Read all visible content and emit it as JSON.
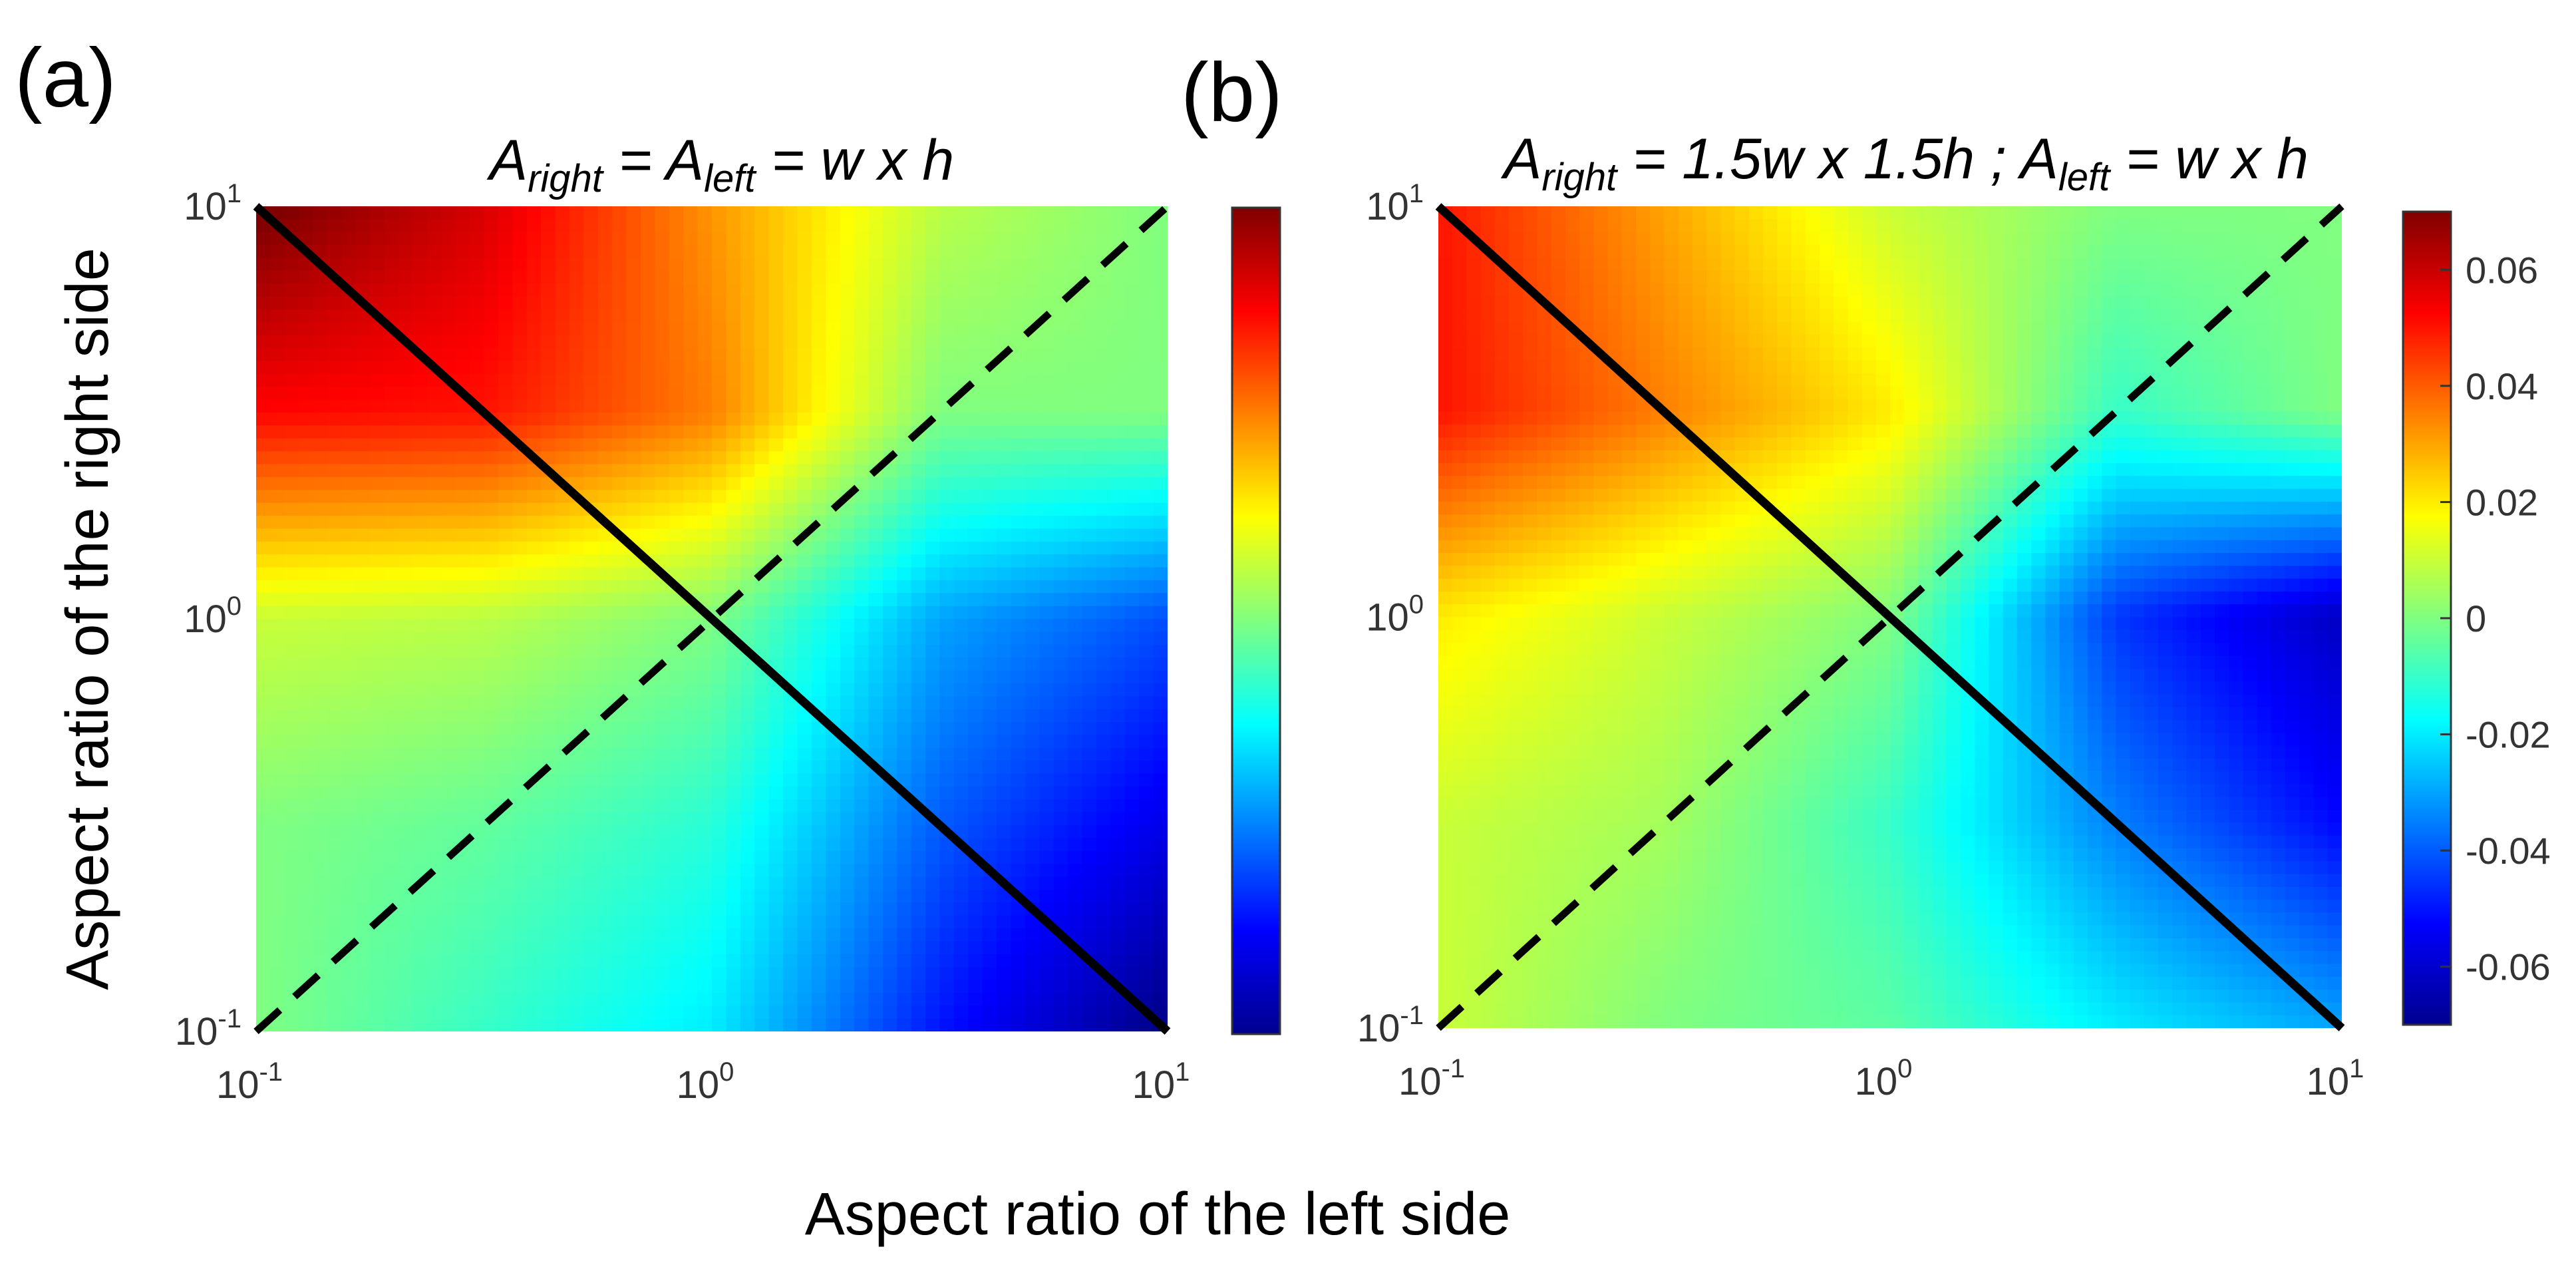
{
  "figure": {
    "xlabel": "Aspect ratio of the left side",
    "ylabel": "Aspect ratio of the right side"
  },
  "chart_data": [
    {
      "type": "heatmap",
      "panel_label": "(a)",
      "title": {
        "A": "A",
        "sub1": "right",
        "mid1": " = ",
        "sub2": "left",
        "rest": " = w x h"
      },
      "x_scale": "log",
      "y_scale": "log",
      "xlim": [
        0.1,
        10
      ],
      "ylim": [
        0.1,
        10
      ],
      "x_ticks": [
        {
          "base": "10",
          "exp": "-1"
        },
        {
          "base": "10",
          "exp": "0"
        },
        {
          "base": "10",
          "exp": "1"
        }
      ],
      "y_ticks": [
        {
          "base": "10",
          "exp": "-1"
        },
        {
          "base": "10",
          "exp": "0"
        },
        {
          "base": "10",
          "exp": "1"
        }
      ],
      "grid_log10": [
        -1,
        -0.5,
        0,
        0.5,
        1
      ],
      "z": [
        [
          0.0,
          -0.01,
          -0.02,
          -0.05,
          -0.072
        ],
        [
          0.0,
          -0.004,
          -0.012,
          -0.04,
          -0.056
        ],
        [
          0.01,
          0.008,
          0.0,
          -0.03,
          -0.042
        ],
        [
          0.052,
          0.05,
          0.035,
          0.0,
          0.0
        ],
        [
          0.072,
          0.058,
          0.032,
          0.008,
          0.0
        ]
      ],
      "lines": [
        {
          "name": "anti-diagonal",
          "style": "solid",
          "x": [
            0.1,
            10
          ],
          "y": [
            10,
            0.1
          ]
        },
        {
          "name": "diagonal",
          "style": "dashed",
          "x": [
            0.1,
            10
          ],
          "y": [
            0.1,
            10
          ]
        }
      ],
      "colorbar": {
        "range": [
          -0.07,
          0.07
        ],
        "show_ticks": false,
        "ticks": []
      }
    },
    {
      "type": "heatmap",
      "panel_label": "(b)",
      "title": {
        "A": "A",
        "sub1": "right",
        "mid1": " = 1.5w x 1.5h ; ",
        "sub2": "left",
        "rest": " = w x h"
      },
      "x_scale": "log",
      "y_scale": "log",
      "xlim": [
        0.1,
        10
      ],
      "ylim": [
        0.1,
        10
      ],
      "x_ticks": [
        {
          "base": "10",
          "exp": "-1"
        },
        {
          "base": "10",
          "exp": "0"
        },
        {
          "base": "10",
          "exp": "1"
        }
      ],
      "y_ticks": [
        {
          "base": "10",
          "exp": "-1"
        },
        {
          "base": "10",
          "exp": "0"
        },
        {
          "base": "10",
          "exp": "1"
        }
      ],
      "grid_log10": [
        -1,
        -0.5,
        0,
        0.5,
        1
      ],
      "z": [
        [
          0.01,
          0.0,
          -0.005,
          -0.02,
          -0.03
        ],
        [
          0.01,
          0.005,
          -0.01,
          -0.035,
          -0.052
        ],
        [
          0.02,
          0.01,
          0.0,
          -0.045,
          -0.062
        ],
        [
          0.05,
          0.035,
          0.02,
          -0.01,
          0.0
        ],
        [
          0.05,
          0.03,
          0.01,
          0.0,
          0.0
        ]
      ],
      "lines": [
        {
          "name": "anti-diagonal",
          "style": "solid",
          "x": [
            0.1,
            10
          ],
          "y": [
            10,
            0.1
          ]
        },
        {
          "name": "diagonal",
          "style": "dashed",
          "x": [
            0.1,
            10
          ],
          "y": [
            0.1,
            10
          ]
        }
      ],
      "colorbar": {
        "range": [
          -0.07,
          0.07
        ],
        "show_ticks": true,
        "ticks": [
          "0.06",
          "0.04",
          "0.02",
          "0",
          "-0.02",
          "-0.04",
          "-0.06"
        ],
        "tick_values": [
          0.06,
          0.04,
          0.02,
          0,
          -0.02,
          -0.04,
          -0.06
        ]
      }
    }
  ]
}
